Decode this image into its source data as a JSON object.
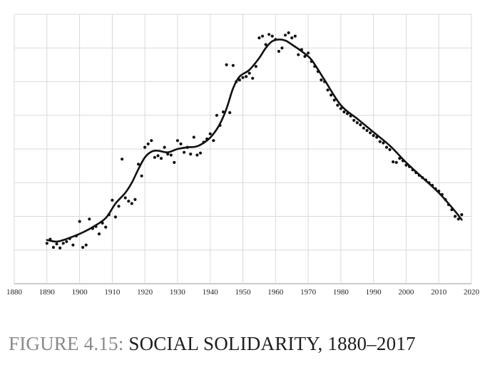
{
  "caption": {
    "prefix": "FIGURE 4.15: ",
    "title": "SOCIAL SOLIDARITY, 1880–2017"
  },
  "colors": {
    "grid": "#d9d9d9",
    "axis": "#9a9a9a",
    "series": "#111111",
    "caption_prefix": "#8a8a8a",
    "caption_title": "#1e1e1e"
  },
  "chart_data": {
    "type": "scatter",
    "title": "",
    "xlabel": "",
    "ylabel": "",
    "x_ticks": [
      "1880",
      "1890",
      "1900",
      "1910",
      "1920",
      "1930",
      "1940",
      "1950",
      "1960",
      "1970",
      "1980",
      "1990",
      "2000",
      "2010",
      "2020"
    ],
    "xlim": [
      1880,
      2020
    ],
    "ylim": [
      0,
      8
    ],
    "y_gridlines": 8,
    "y_tick_labels_shown": false,
    "grid": true,
    "legend": "none",
    "series": [
      {
        "kind": "points",
        "x": [
          1890,
          1891,
          1892,
          1893,
          1894,
          1895,
          1896,
          1897,
          1898,
          1899,
          1900,
          1901,
          1902,
          1903,
          1904,
          1905,
          1906,
          1907,
          1908,
          1909,
          1910,
          1911,
          1912,
          1913,
          1914,
          1915,
          1916,
          1917,
          1918,
          1919,
          1920,
          1921,
          1922,
          1923,
          1924,
          1925,
          1926,
          1927,
          1928,
          1929,
          1930,
          1931,
          1932,
          1933,
          1934,
          1935,
          1936,
          1937,
          1938,
          1939,
          1940,
          1941,
          1942,
          1943,
          1944,
          1945,
          1946,
          1947,
          1948,
          1949,
          1950,
          1951,
          1952,
          1953,
          1954,
          1955,
          1956,
          1957,
          1958,
          1959,
          1960,
          1961,
          1962,
          1963,
          1964,
          1965,
          1966,
          1967,
          1968,
          1969,
          1970,
          1971,
          1972,
          1973,
          1974,
          1975,
          1976,
          1977,
          1978,
          1979,
          1980,
          1981,
          1982,
          1983,
          1984,
          1985,
          1986,
          1987,
          1988,
          1989,
          1990,
          1991,
          1992,
          1993,
          1994,
          1995,
          1996,
          1997,
          1998,
          1999,
          2000,
          2001,
          2002,
          2003,
          2004,
          2005,
          2006,
          2007,
          2008,
          2009,
          2010,
          2011,
          2012,
          2013,
          2014,
          2015,
          2016,
          2017
        ],
        "y": [
          1.2,
          1.32,
          1.08,
          1.18,
          1.06,
          1.2,
          1.25,
          1.34,
          1.15,
          1.42,
          1.85,
          1.08,
          1.15,
          1.92,
          1.64,
          1.7,
          1.48,
          1.8,
          1.68,
          2.05,
          2.48,
          1.98,
          2.3,
          3.7,
          2.55,
          2.45,
          2.38,
          2.5,
          3.55,
          3.2,
          4.05,
          4.15,
          4.25,
          3.75,
          3.8,
          3.72,
          4.05,
          3.85,
          3.82,
          3.6,
          4.25,
          4.15,
          3.9,
          4.05,
          3.85,
          4.35,
          3.82,
          3.88,
          4.2,
          4.3,
          4.45,
          4.25,
          5.0,
          4.7,
          5.1,
          6.5,
          5.08,
          6.48,
          6.0,
          6.05,
          6.12,
          6.15,
          6.25,
          6.1,
          6.45,
          7.3,
          7.35,
          7.1,
          7.4,
          7.35,
          7.25,
          6.9,
          7.0,
          7.38,
          7.45,
          7.3,
          7.35,
          6.8,
          6.95,
          6.75,
          6.85,
          6.6,
          6.45,
          6.3,
          6.05,
          6.0,
          5.75,
          5.6,
          5.45,
          5.3,
          5.2,
          5.1,
          5.05,
          4.98,
          4.85,
          4.78,
          4.72,
          4.62,
          4.55,
          4.48,
          4.4,
          4.35,
          4.22,
          4.18,
          4.05,
          3.98,
          3.62,
          3.6,
          3.72,
          3.65,
          3.52,
          3.48,
          3.38,
          3.3,
          3.22,
          3.15,
          3.08,
          3.0,
          2.92,
          2.82,
          2.75,
          2.65,
          2.5,
          2.35,
          2.2,
          2.0,
          1.92,
          2.05
        ]
      },
      {
        "kind": "smoothed_line",
        "x": [
          1890,
          1893,
          1896,
          1900,
          1904,
          1908,
          1911,
          1914,
          1916,
          1918,
          1920,
          1922,
          1924,
          1927,
          1930,
          1933,
          1936,
          1939,
          1941,
          1943,
          1945,
          1947,
          1949,
          1952,
          1955,
          1957,
          1959,
          1961,
          1963,
          1965,
          1968,
          1971,
          1975,
          1980,
          1985,
          1990,
          1995,
          2000,
          2005,
          2010,
          2015,
          2017
        ],
        "y": [
          1.3,
          1.25,
          1.33,
          1.48,
          1.68,
          1.95,
          2.38,
          2.7,
          3.0,
          3.4,
          3.75,
          3.92,
          3.95,
          3.9,
          4.0,
          4.05,
          4.08,
          4.25,
          4.45,
          4.75,
          5.2,
          5.8,
          6.15,
          6.35,
          6.7,
          7.0,
          7.2,
          7.25,
          7.22,
          7.1,
          6.9,
          6.65,
          6.05,
          5.3,
          4.9,
          4.5,
          4.1,
          3.6,
          3.15,
          2.7,
          2.15,
          1.9
        ]
      }
    ]
  }
}
